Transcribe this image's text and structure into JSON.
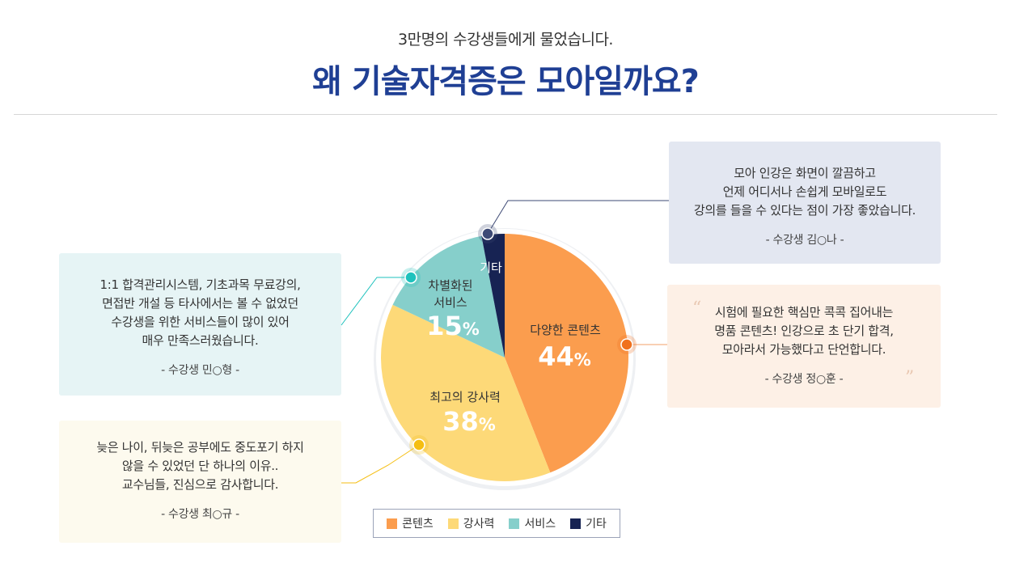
{
  "header": {
    "subtitle": "3만명의 수강생들에게 물었습니다.",
    "title": "왜 기술자격증은 모아일까요?"
  },
  "chart_data": {
    "type": "pie",
    "title": "왜 기술자격증은 모아일까요?",
    "slices": [
      {
        "key": "content",
        "label": "다양한 콘텐츠",
        "value": 44,
        "value_text": "44",
        "unit": "%",
        "color": "#fb9d4e"
      },
      {
        "key": "lecturer",
        "label": "최고의 강사력",
        "value": 38,
        "value_text": "38",
        "unit": "%",
        "color": "#fdd978"
      },
      {
        "key": "service",
        "label_lines": [
          "차별화된",
          "서비스"
        ],
        "value": 15,
        "value_text": "15",
        "unit": "%",
        "color": "#86cfcb"
      },
      {
        "key": "etc",
        "label": "기타",
        "value": 3,
        "color": "#172353"
      }
    ],
    "legend": [
      {
        "label": "콘텐츠",
        "color": "#fb9d4e"
      },
      {
        "label": "강사력",
        "color": "#fdd978"
      },
      {
        "label": "서비스",
        "color": "#86cfcb"
      },
      {
        "label": "기타",
        "color": "#172353"
      }
    ],
    "marker_colors": {
      "content": "#f0711e",
      "lecturer": "#f5be12",
      "service": "#1ec2bd",
      "etc": "#3e4a75"
    }
  },
  "testimonials": {
    "service": {
      "lines": [
        "1:1 합격관리시스템, 기초과목 무료강의,",
        "면접반 개설 등 타사에서는 볼 수 없었던",
        "수강생을 위한 서비스들이 많이 있어",
        "매우 만족스러웠습니다."
      ],
      "author": "- 수강생 민○형 -"
    },
    "lecturer": {
      "lines": [
        "늦은 나이, 뒤늦은 공부에도 중도포기 하지",
        "않을 수 있었던 단 하나의 이유..",
        "교수님들, 진심으로 감사합니다."
      ],
      "author": "- 수강생 최○규 -"
    },
    "etc": {
      "lines": [
        "모아 인강은 화면이 깔끔하고",
        "언제 어디서나 손쉽게 모바일로도",
        "강의를 들을 수 있다는 점이 가장 좋았습니다."
      ],
      "author": "- 수강생 김○나 -"
    },
    "content": {
      "lines": [
        "시험에 필요한 핵심만 콕콕 집어내는",
        "명품 콘텐츠! 인강으로 초 단기 합격,",
        "모아라서 가능했다고 단언합니다."
      ],
      "author": "- 수강생 정○훈 -",
      "quote_open": "“",
      "quote_close": "”"
    }
  }
}
